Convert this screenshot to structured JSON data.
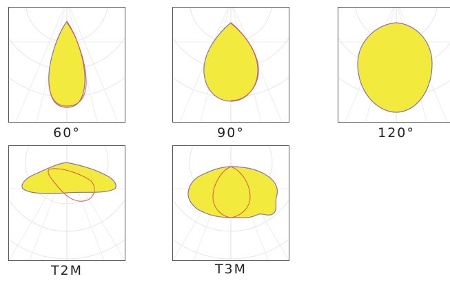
{
  "colors": {
    "fill": "#f2ea3c",
    "outline": "#8a6fb0",
    "secondary_outline": "#e0574a",
    "grid": "#dedede",
    "frame": "#555555"
  },
  "panels": [
    {
      "id": "60",
      "label": "60°",
      "shape": "narrow-teardrop"
    },
    {
      "id": "90",
      "label": "90°",
      "shape": "teardrop"
    },
    {
      "id": "120",
      "label": "120°",
      "shape": "round"
    },
    {
      "id": "t2m",
      "label": "T2M",
      "shape": "flat-lobe"
    },
    {
      "id": "t3m",
      "label": "T3M",
      "shape": "wide-lobe"
    }
  ]
}
